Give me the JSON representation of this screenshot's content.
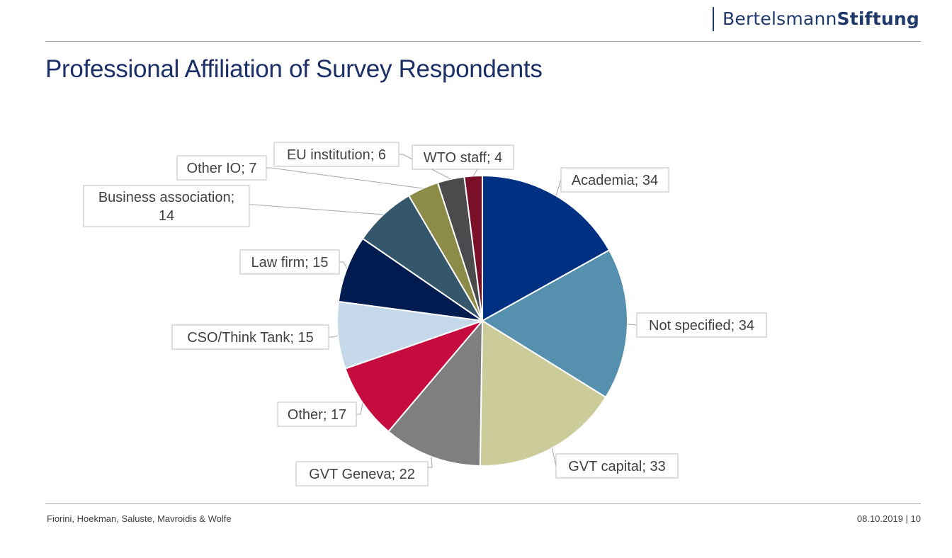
{
  "header": {
    "brand_part1": "Bertelsmann",
    "brand_part2": "Stiftung",
    "brand_color": "#1f3a6b"
  },
  "slide": {
    "title": "Professional Affiliation of Survey Respondents"
  },
  "chart_data": {
    "type": "pie",
    "title": "",
    "start_angle_deg": 0,
    "direction": "clockwise",
    "label_format": "{category}; {value}",
    "slices": [
      {
        "category": "Academia",
        "value": 34,
        "color": "#003082"
      },
      {
        "category": "Not specified",
        "value": 34,
        "color": "#5591ae"
      },
      {
        "category": "GVT capital",
        "value": 33,
        "color": "#cccc9b"
      },
      {
        "category": "GVT Geneva",
        "value": 22,
        "color": "#7f7f7f"
      },
      {
        "category": "Other",
        "value": 17,
        "color": "#c60c3e"
      },
      {
        "category": "CSO/Think Tank",
        "value": 15,
        "color": "#c5d9ea"
      },
      {
        "category": "Law firm",
        "value": 15,
        "color": "#001b4f"
      },
      {
        "category": "Business association",
        "value": 14,
        "color": "#35576b"
      },
      {
        "category": "Other IO",
        "value": 7,
        "color": "#8c8c48"
      },
      {
        "category": "EU institution",
        "value": 6,
        "color": "#4b4b4d"
      },
      {
        "category": "WTO staff",
        "value": 4,
        "color": "#7a0f2a"
      }
    ]
  },
  "footer": {
    "authors": "Fiorini, Hoekman,  Saluste, Mavroidis & Wolfe",
    "date_page": "08.10.2019  |  10"
  }
}
